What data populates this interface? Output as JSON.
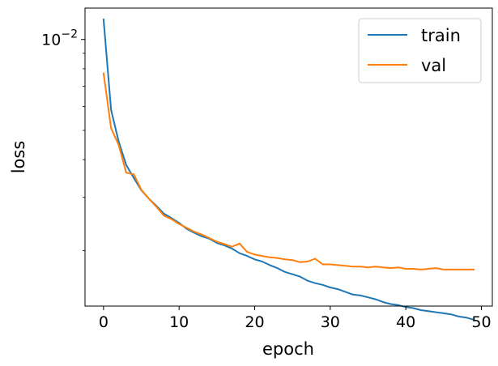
{
  "chart_data": {
    "type": "line",
    "yscale": "log",
    "xlabel": "epoch",
    "ylabel": "loss",
    "xlim": [
      -2.45,
      51.45
    ],
    "ylim": [
      0.00131,
      0.0127
    ],
    "xticks": [
      0,
      10,
      20,
      30,
      40,
      50
    ],
    "yticks": [
      {
        "value": 0.01,
        "base": "10",
        "exponent": "−2"
      }
    ],
    "legend": {
      "location": "upper right"
    },
    "series": [
      {
        "name": "train",
        "color": "#1f77b4",
        "x": [
          0,
          1,
          2,
          3,
          4,
          5,
          6,
          7,
          8,
          9,
          10,
          11,
          12,
          13,
          14,
          15,
          16,
          17,
          18,
          19,
          20,
          21,
          22,
          23,
          24,
          25,
          26,
          27,
          28,
          29,
          30,
          31,
          32,
          33,
          34,
          35,
          36,
          37,
          38,
          39,
          40,
          41,
          42,
          43,
          44,
          45,
          46,
          47,
          48,
          49
        ],
        "values": [
          0.01165,
          0.00584,
          0.0046,
          0.00384,
          0.00348,
          0.00317,
          0.00297,
          0.00281,
          0.00265,
          0.00256,
          0.00247,
          0.00236,
          0.00229,
          0.00223,
          0.00219,
          0.00212,
          0.00208,
          0.00203,
          0.00196,
          0.00192,
          0.00187,
          0.00184,
          0.00179,
          0.00175,
          0.0017,
          0.00167,
          0.00164,
          0.00159,
          0.00156,
          0.00154,
          0.00151,
          0.00149,
          0.00146,
          0.00143,
          0.00142,
          0.0014,
          0.00138,
          0.00135,
          0.00133,
          0.00132,
          0.0013,
          0.00129,
          0.00127,
          0.00126,
          0.00125,
          0.00124,
          0.00123,
          0.00121,
          0.0012,
          0.00118
        ]
      },
      {
        "name": "val",
        "color": "#ff7f0e",
        "x": [
          0,
          1,
          2,
          3,
          4,
          5,
          6,
          7,
          8,
          9,
          10,
          11,
          12,
          13,
          14,
          15,
          16,
          17,
          18,
          19,
          20,
          21,
          22,
          23,
          24,
          25,
          26,
          27,
          28,
          29,
          30,
          31,
          32,
          33,
          34,
          35,
          36,
          37,
          38,
          39,
          40,
          41,
          42,
          43,
          44,
          45,
          46,
          47,
          48,
          49
        ],
        "values": [
          0.00772,
          0.00508,
          0.00448,
          0.00362,
          0.00358,
          0.00318,
          0.00297,
          0.00279,
          0.00261,
          0.00254,
          0.00245,
          0.00238,
          0.00231,
          0.00226,
          0.0022,
          0.00214,
          0.0021,
          0.00206,
          0.00211,
          0.00198,
          0.00194,
          0.00192,
          0.0019,
          0.00189,
          0.00187,
          0.00186,
          0.00183,
          0.00184,
          0.00188,
          0.0018,
          0.0018,
          0.00179,
          0.00178,
          0.00177,
          0.00177,
          0.00176,
          0.00177,
          0.00176,
          0.00175,
          0.00176,
          0.00174,
          0.00174,
          0.00173,
          0.00174,
          0.00175,
          0.00173,
          0.00173,
          0.00173,
          0.00173,
          0.00173
        ]
      }
    ]
  }
}
